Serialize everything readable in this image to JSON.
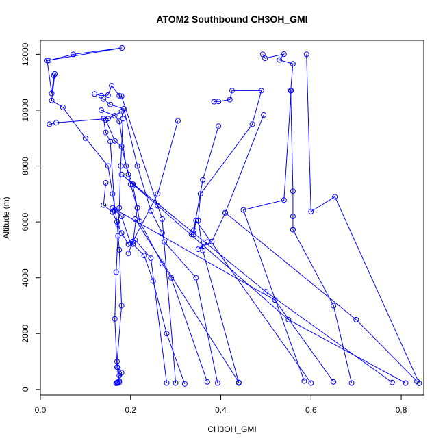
{
  "chart_data": {
    "type": "line",
    "title": "ATOM2 Southbound CH3OH_GMI",
    "xlabel": "CH3OH_GMI",
    "ylabel": "Altitude (m)",
    "xlim": [
      0.0,
      0.85
    ],
    "ylim": [
      -200,
      12500
    ],
    "xticks": [
      0.0,
      0.2,
      0.4,
      0.6,
      0.8
    ],
    "xtick_labels": [
      "0.0",
      "0.2",
      "0.4",
      "0.6",
      "0.8"
    ],
    "yticks": [
      0,
      2000,
      4000,
      6000,
      8000,
      10000,
      12000
    ],
    "ytick_labels": [
      "0",
      "2000",
      "4000",
      "6000",
      "8000",
      "10000",
      "12000"
    ],
    "grid": false,
    "color": "#0000ff",
    "series": [
      {
        "x": [
          0.018,
          0.073,
          0.181,
          0.015,
          0.025,
          0.03,
          0.032,
          0.025,
          0.05,
          0.1,
          0.15,
          0.16,
          0.17,
          0.175,
          0.18,
          0.17,
          0.175,
          0.17,
          0.172,
          0.168,
          0.17,
          0.172,
          0.175,
          0.18,
          0.172
        ],
        "y": [
          11780,
          12000,
          12230,
          11780,
          10600,
          11250,
          11300,
          10350,
          10100,
          9000,
          8000,
          7000,
          6000,
          5000,
          3000,
          1000,
          500,
          250,
          230,
          220,
          240,
          260,
          300,
          600,
          780
        ]
      },
      {
        "x": [
          0.02,
          0.035,
          0.15,
          0.18,
          0.183,
          0.178,
          0.175,
          0.172,
          0.168,
          0.165,
          0.17,
          0.175
        ],
        "y": [
          9500,
          9550,
          9700,
          9950,
          9700,
          8000,
          6500,
          5500,
          4200,
          2530,
          800,
          250
        ]
      },
      {
        "x": [
          0.12,
          0.135,
          0.15,
          0.158,
          0.175,
          0.18,
          0.26,
          0.27,
          0.3
        ],
        "y": [
          10580,
          10520,
          10540,
          10880,
          10520,
          10500,
          6580,
          6100,
          230
        ]
      },
      {
        "x": [
          0.14,
          0.155,
          0.185,
          0.215,
          0.245,
          0.27,
          0.275,
          0.345,
          0.393
        ],
        "y": [
          10400,
          10200,
          10050,
          8000,
          6400,
          5600,
          5280,
          4000,
          230
        ]
      },
      {
        "x": [
          0.135,
          0.165,
          0.175,
          0.19,
          0.205,
          0.215,
          0.205,
          0.23,
          0.25,
          0.28,
          0.32
        ],
        "y": [
          10000,
          9800,
          9600,
          8000,
          7300,
          6500,
          5200,
          4800,
          3880,
          2000,
          200
        ]
      },
      {
        "x": [
          0.145,
          0.165,
          0.18,
          0.195,
          0.2,
          0.215,
          0.22,
          0.27,
          0.29,
          0.37
        ],
        "y": [
          9650,
          8900,
          8700,
          7700,
          7350,
          6500,
          6020,
          4500,
          4000,
          270
        ]
      },
      {
        "x": [
          0.14,
          0.145,
          0.155,
          0.165,
          0.18,
          0.2,
          0.21,
          0.245,
          0.28
        ],
        "y": [
          9700,
          9200,
          8880,
          6420,
          6200,
          5230,
          5350,
          4700,
          230
        ]
      },
      {
        "x": [
          0.145,
          0.14,
          0.16,
          0.172,
          0.18,
          0.195
        ],
        "y": [
          7400,
          6600,
          6350,
          5900,
          5600,
          5200
        ]
      },
      {
        "x": [
          0.305,
          0.26,
          0.205,
          0.195
        ],
        "y": [
          9620,
          7000,
          5300,
          4870
        ]
      },
      {
        "x": [
          0.385,
          0.395,
          0.42,
          0.425,
          0.49,
          0.47,
          0.355,
          0.35,
          0.36,
          0.44
        ],
        "y": [
          10300,
          10310,
          10380,
          10700,
          10700,
          9500,
          7000,
          6050,
          4980,
          230
        ]
      },
      {
        "x": [
          0.395,
          0.36,
          0.34,
          0.335,
          0.34,
          0.34,
          0.345,
          0.6
        ],
        "y": [
          9430,
          7500,
          5700,
          5560,
          5550,
          5550,
          6050,
          230
        ]
      },
      {
        "x": [
          0.493,
          0.498,
          0.54,
          0.53,
          0.56,
          0.555,
          0.56,
          0.56,
          0.56
        ],
        "y": [
          12000,
          11860,
          12010,
          11800,
          11660,
          10700,
          7100,
          6200,
          5720
        ]
      },
      {
        "x": [
          0.59,
          0.6,
          0.653,
          0.84
        ],
        "y": [
          12000,
          6370,
          6900,
          220
        ]
      },
      {
        "x": [
          0.495,
          0.41,
          0.38,
          0.35,
          0.37
        ],
        "y": [
          9830,
          6330,
          5300,
          5020,
          5280
        ]
      },
      {
        "x": [
          0.556,
          0.54,
          0.45,
          0.585
        ],
        "y": [
          10700,
          6780,
          6430,
          300
        ]
      },
      {
        "x": [
          0.56,
          0.65,
          0.69
        ],
        "y": [
          5720,
          3000,
          230
        ]
      },
      {
        "x": [
          0.41,
          0.7,
          0.835
        ],
        "y": [
          6330,
          2500,
          290
        ]
      },
      {
        "x": [
          0.18,
          0.5,
          0.78
        ],
        "y": [
          7700,
          3500,
          250
        ]
      },
      {
        "x": [
          0.205,
          0.55,
          0.81
        ],
        "y": [
          7350,
          2500,
          230
        ]
      },
      {
        "x": [
          0.21,
          0.44
        ],
        "y": [
          6100,
          250
        ]
      },
      {
        "x": [
          0.16,
          0.52,
          0.65
        ],
        "y": [
          6500,
          3200,
          270
        ]
      }
    ]
  }
}
